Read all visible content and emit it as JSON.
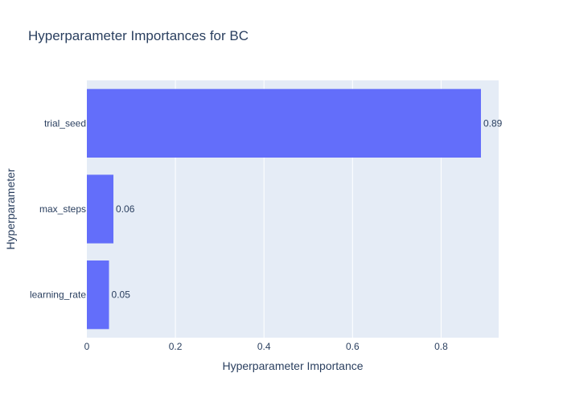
{
  "chart_data": {
    "type": "bar",
    "orientation": "horizontal",
    "title": "Hyperparameter Importances for BC",
    "xlabel": "Hyperparameter Importance",
    "ylabel": "Hyperparameter",
    "categories": [
      "learning_rate",
      "max_steps",
      "trial_seed"
    ],
    "values": [
      0.05,
      0.06,
      0.89
    ],
    "data_labels": [
      "0.05",
      "0.06",
      "0.89"
    ],
    "xlim": [
      0,
      0.93
    ],
    "xticks": [
      0,
      0.2,
      0.4,
      0.6,
      0.8
    ],
    "xtick_labels": [
      "0",
      "0.2",
      "0.4",
      "0.6",
      "0.8"
    ],
    "grid": true,
    "colors": {
      "bar": "#636efa",
      "plot_background": "#e5ecf6",
      "gridline": "#ffffff",
      "text": "#2a3f5f"
    }
  }
}
